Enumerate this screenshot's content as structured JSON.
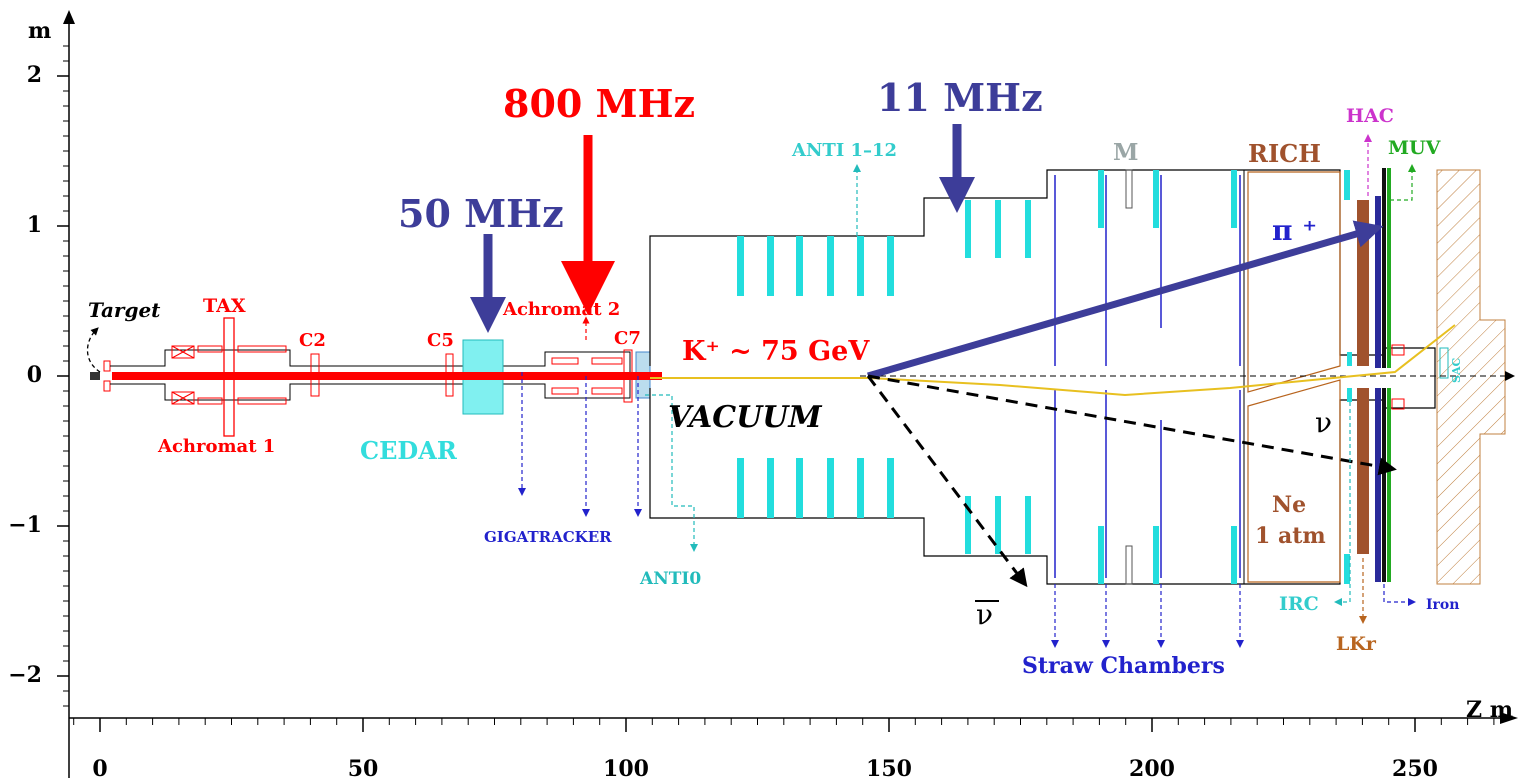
{
  "axes": {
    "y_unit": "m",
    "x_unit": "Z  m",
    "x_ticks": [
      "0",
      "50",
      "100",
      "150",
      "200",
      "250"
    ],
    "y_ticks": [
      "2",
      "1",
      "0",
      "−1",
      "−2"
    ]
  },
  "rates": {
    "r800": "800 MHz",
    "r50": "50 MHz",
    "r11": "11 MHz"
  },
  "labels": {
    "target": "Target",
    "tax": "TAX",
    "achromat1": "Achromat 1",
    "c2": "C2",
    "c5": "C5",
    "c7": "C7",
    "achromat2": "Achromat 2",
    "cedar": "CEDAR",
    "gigatracker": "GIGATRACKER",
    "anti0": "ANTI0",
    "anti112": "ANTI 1–12",
    "vacuum": "VACUUM",
    "kaon": "K⁺ ~ 75 GeV",
    "m": "M",
    "rich": "RICH",
    "hac": "HAC",
    "muv": "MUV",
    "pion": "π ⁺",
    "nu": "ν",
    "nubar": "ν",
    "ne": "Ne",
    "atm": "1 atm",
    "irc": "IRC",
    "lkr": "LKr",
    "iron": "Iron",
    "sac": "SAC",
    "straw": "Straw Chambers"
  },
  "colors": {
    "red": "#ff0000",
    "rate_blue": "#3d3d99",
    "cyan": "#22dddd",
    "cyan_text": "#33cccc",
    "blue": "#2222cc",
    "brown": "#b8641e",
    "rich_brown": "#a0522d",
    "magenta": "#cc33cc",
    "green": "#22aa22",
    "gold": "#e8c020",
    "gray": "#9aa6a6"
  }
}
